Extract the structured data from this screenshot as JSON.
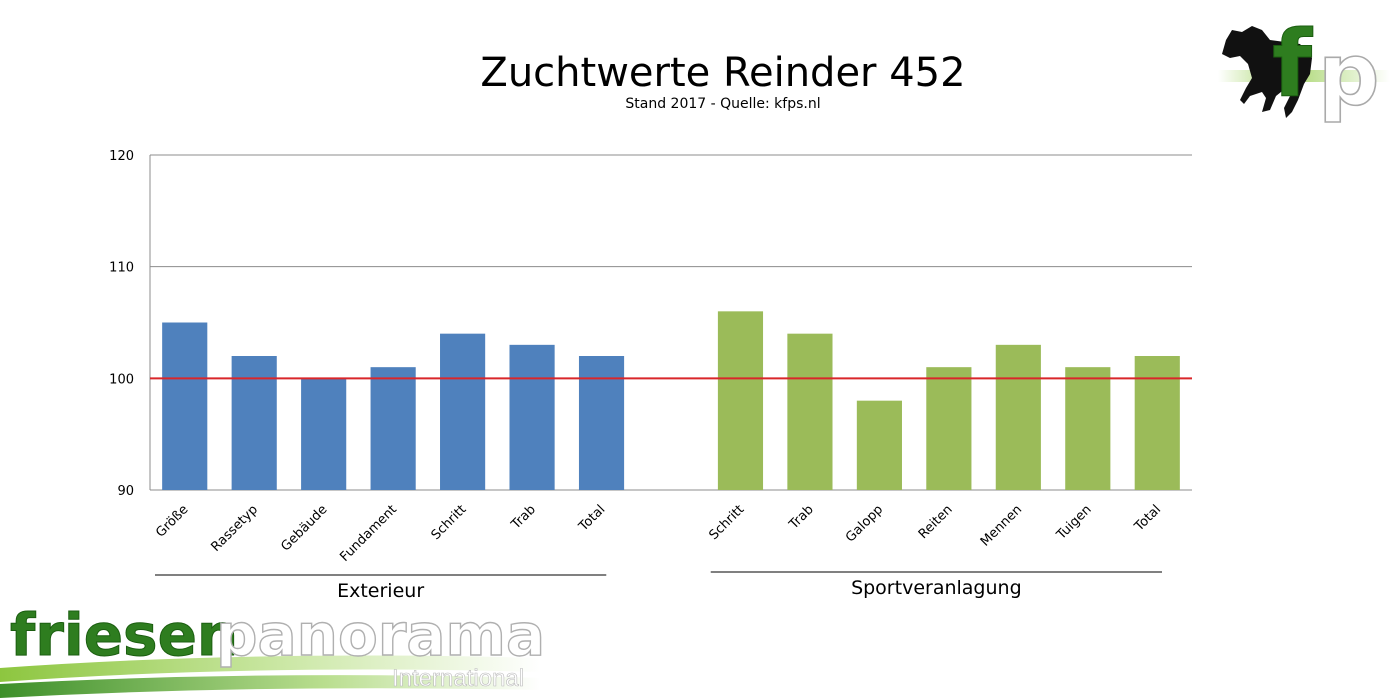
{
  "chart_data": {
    "type": "bar",
    "title": "Zuchtwerte Reinder 452",
    "subtitle": "Stand 2017 - Quelle: kfps.nl",
    "ylim": [
      90,
      120
    ],
    "yticks": [
      90,
      100,
      110,
      120
    ],
    "reference_line": {
      "value": 100,
      "color": "#d9262a"
    },
    "grid": true,
    "groups": [
      {
        "name": "Exterieur",
        "color": "#4f81bd",
        "categories": [
          "Größe",
          "Rassetyp",
          "Gebäude",
          "Fundament",
          "Schritt",
          "Trab",
          "Total"
        ],
        "values": [
          105,
          102,
          100,
          101,
          104,
          103,
          102
        ]
      },
      {
        "name": "Sportveranlagung",
        "color": "#9bbb59",
        "categories": [
          "Schritt",
          "Trab",
          "Galopp",
          "Reiten",
          "Mennen",
          "Tuigen",
          "Total"
        ],
        "values": [
          106,
          104,
          98,
          101,
          103,
          101,
          102
        ]
      }
    ]
  },
  "branding": {
    "logo_text_dark": "friesen",
    "logo_text_light": "panorama",
    "logo_subtext": "International",
    "logo_corner": "fp",
    "logo_icon": "horse-icon"
  }
}
